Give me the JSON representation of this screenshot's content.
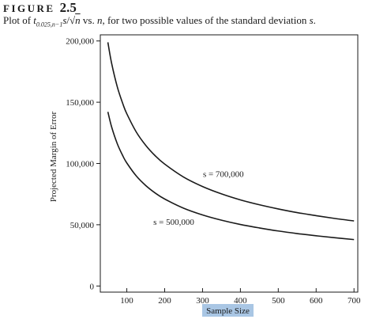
{
  "figure": {
    "label": "FIGURE",
    "number": "2.5",
    "caption": {
      "prefix": "Plot of ",
      "t": "t",
      "subscript": "0.025,n−1",
      "s": "s",
      "slash": "/",
      "sqrt": "√",
      "n": "n",
      "vs": " vs. ",
      "n2": "n",
      "suffix": ", for two possible values of the standard deviation ",
      "s2": "s",
      "end": "."
    }
  },
  "chart_data": {
    "type": "line",
    "xlabel": "Sample Size",
    "ylabel": "Projected Margin of Error",
    "xlim": [
      30,
      710
    ],
    "ylim": [
      -5000,
      205000
    ],
    "x_ticks": [
      100,
      200,
      300,
      400,
      500,
      600,
      700
    ],
    "x_tick_labels": [
      "100",
      "200",
      "300",
      "400",
      "500",
      "600",
      "700"
    ],
    "y_ticks": [
      0,
      50000,
      100000,
      150000,
      200000
    ],
    "y_tick_labels": [
      "0",
      "50,000",
      "100,000",
      "150,000",
      "200,000"
    ],
    "grid": false,
    "legend": "none",
    "series": [
      {
        "name": "s = 700,000",
        "x": [
          50,
          60,
          75,
          90,
          100,
          125,
          150,
          175,
          200,
          250,
          300,
          350,
          400,
          450,
          500,
          550,
          600,
          650,
          700
        ],
        "y": [
          198900,
          181600,
          162400,
          148300,
          140600,
          125700,
          114800,
          106300,
          99500,
          88900,
          81200,
          75200,
          70300,
          66300,
          62900,
          59900,
          57400,
          55100,
          53100
        ]
      },
      {
        "name": "s = 500,000",
        "x": [
          50,
          60,
          75,
          90,
          100,
          125,
          150,
          175,
          200,
          250,
          300,
          350,
          400,
          450,
          500,
          550,
          600,
          650,
          700
        ],
        "y": [
          142100,
          129700,
          116000,
          105900,
          100400,
          89800,
          82000,
          75900,
          71000,
          63500,
          58000,
          53700,
          50200,
          47400,
          44900,
          42800,
          41000,
          39400,
          37900
        ]
      }
    ],
    "annotations": [
      {
        "text": "s = 700,000",
        "x": 355,
        "y": 89000
      },
      {
        "text": "s = 500,000",
        "x": 224,
        "y": 50000
      }
    ]
  }
}
